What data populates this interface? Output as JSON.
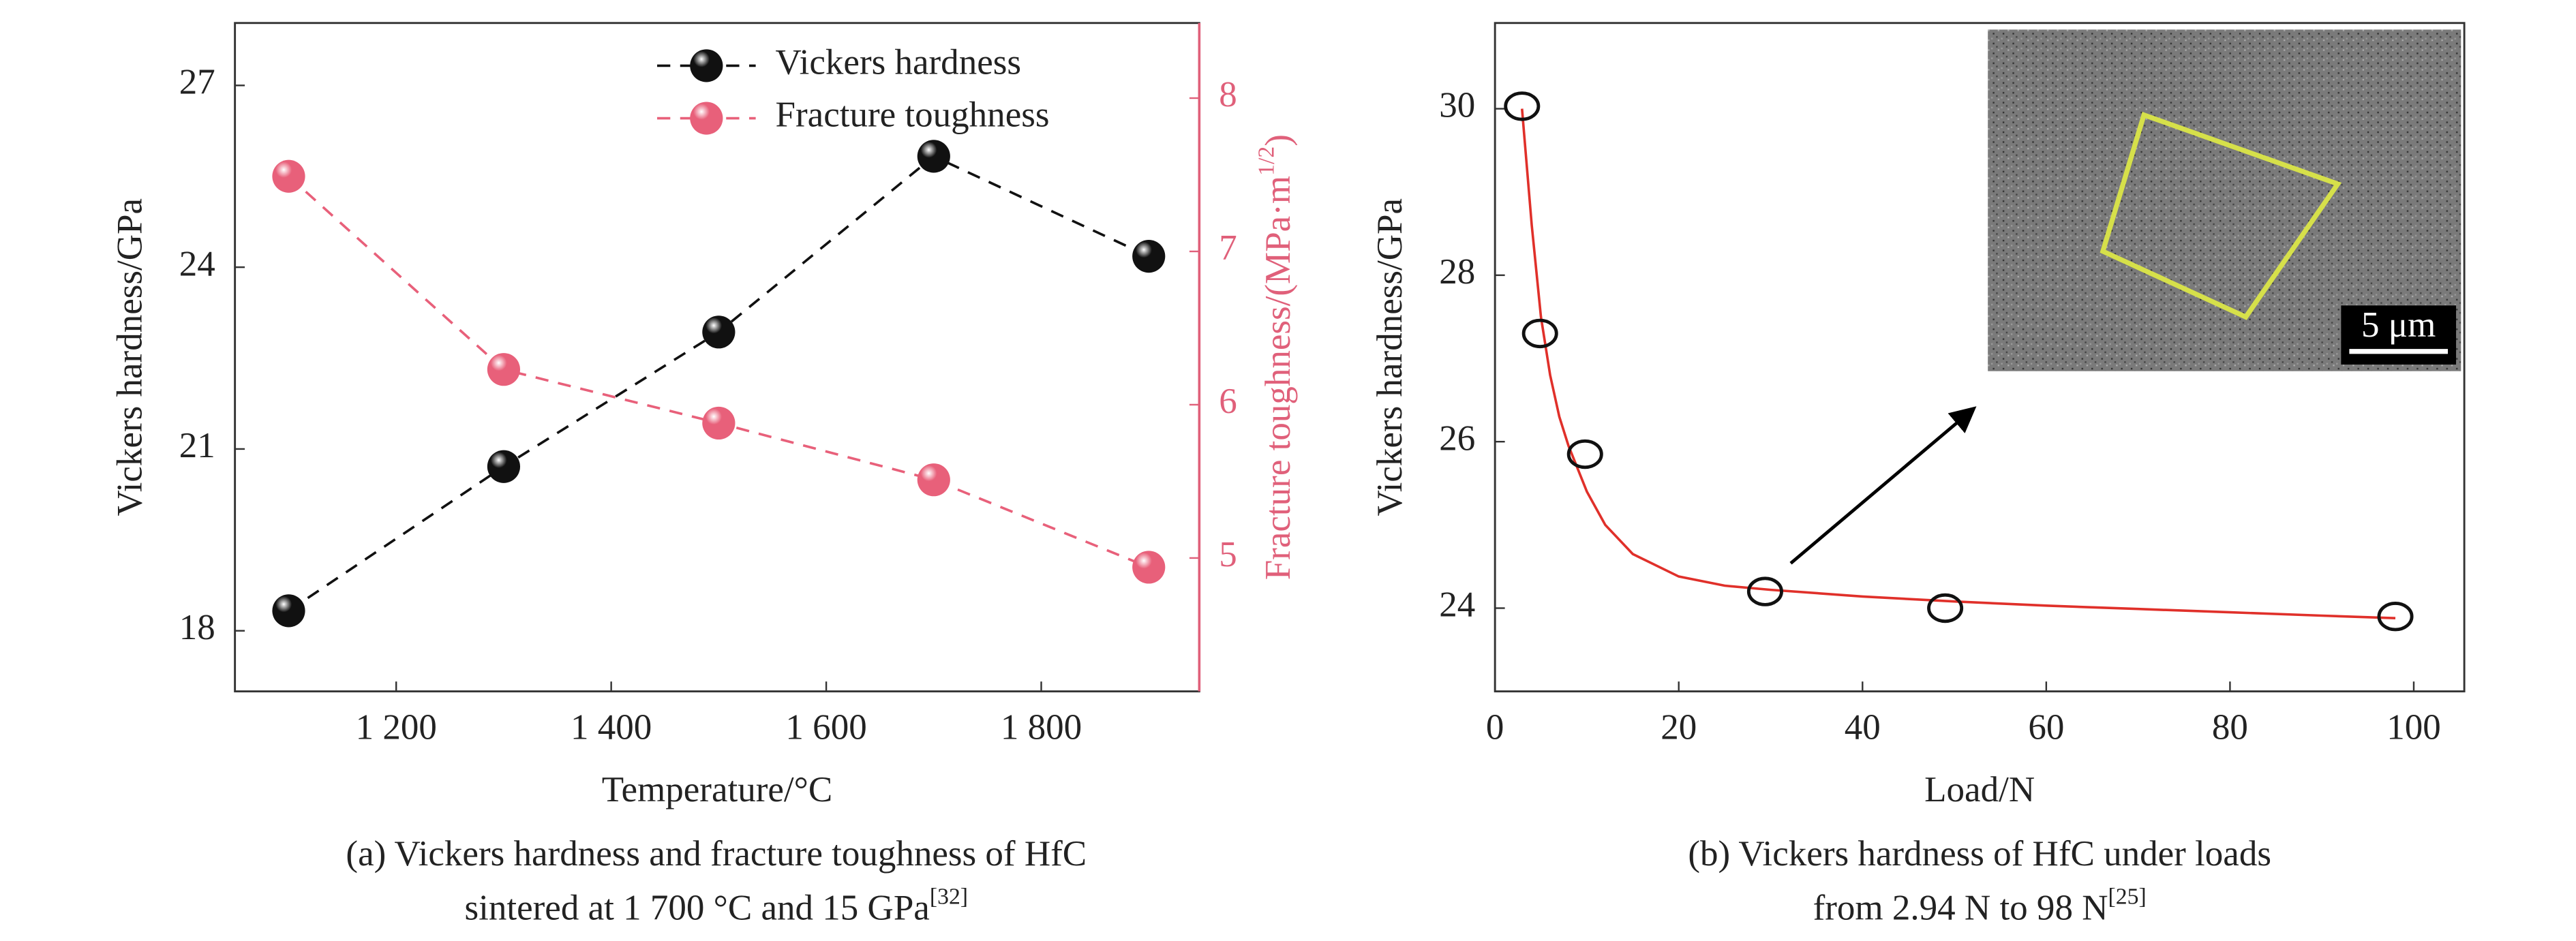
{
  "chart_data": [
    {
      "type": "line",
      "caption": [
        "(a) Vickers hardness and fracture toughness of HfC",
        "sintered at 1 700 °C and 15 GPa"
      ],
      "caption_ref": "[32]",
      "x_label": "Temperature/°C",
      "y_label": "Vickers hardness/GPa",
      "y2_label": "Fracture toughness/(MPa·m",
      "y2_label_sup": "1/2",
      "y2_label_end": ")",
      "y2_color": "#e0607a",
      "x": [
        1100,
        1300,
        1500,
        1700,
        1900
      ],
      "xlim": [
        1050,
        1947
      ],
      "xticks": [
        {
          "value": 1200,
          "label": "1 200"
        },
        {
          "value": 1400,
          "label": "1 400"
        },
        {
          "value": 1600,
          "label": "1 600"
        },
        {
          "value": 1800,
          "label": "1 800"
        }
      ],
      "ylim": [
        17,
        28.03
      ],
      "yticks": [
        18,
        21,
        24,
        27
      ],
      "y2lim": [
        4.13,
        8.49
      ],
      "y2ticks": [
        5,
        6,
        7,
        8
      ],
      "legend": "upper right",
      "series": [
        {
          "name": "Vickers hardness",
          "color": "#111111",
          "values": [
            18.33,
            20.71,
            22.93,
            25.83,
            24.18
          ]
        },
        {
          "name": "Fracture toughness",
          "color": "#e8607a",
          "axis": "y2",
          "values": [
            7.49,
            6.23,
            5.88,
            5.51,
            4.94
          ]
        }
      ]
    },
    {
      "type": "scatter",
      "caption": [
        "(b) Vickers hardness of HfC under loads",
        "from 2.94 N to 98 N"
      ],
      "caption_ref": "[25]",
      "x_label": "Load/N",
      "y_label": "Vickers hardness/GPa",
      "inset_scale_label": "5 μm",
      "x": [
        2.94,
        4.9,
        9.8,
        29.4,
        49,
        98
      ],
      "values": [
        30.03,
        27.3,
        25.85,
        24.2,
        24.0,
        23.9
      ],
      "color": "#111111",
      "xlim": [
        0,
        105.5
      ],
      "xticks": [
        0,
        20,
        40,
        60,
        80,
        100
      ],
      "ylim": [
        23,
        31.03
      ],
      "yticks": [
        24,
        26,
        28,
        30
      ],
      "fit": {
        "color": "#e0302a",
        "x": [
          2.94,
          4,
          5,
          6,
          7,
          8,
          10,
          12,
          15,
          20,
          25,
          30,
          40,
          50,
          60,
          70,
          80,
          90,
          98
        ],
        "values": [
          30.0,
          28.6,
          27.5,
          26.8,
          26.3,
          25.95,
          25.4,
          25.0,
          24.65,
          24.38,
          24.27,
          24.22,
          24.14,
          24.08,
          24.03,
          23.99,
          23.95,
          23.91,
          23.88
        ]
      }
    }
  ]
}
